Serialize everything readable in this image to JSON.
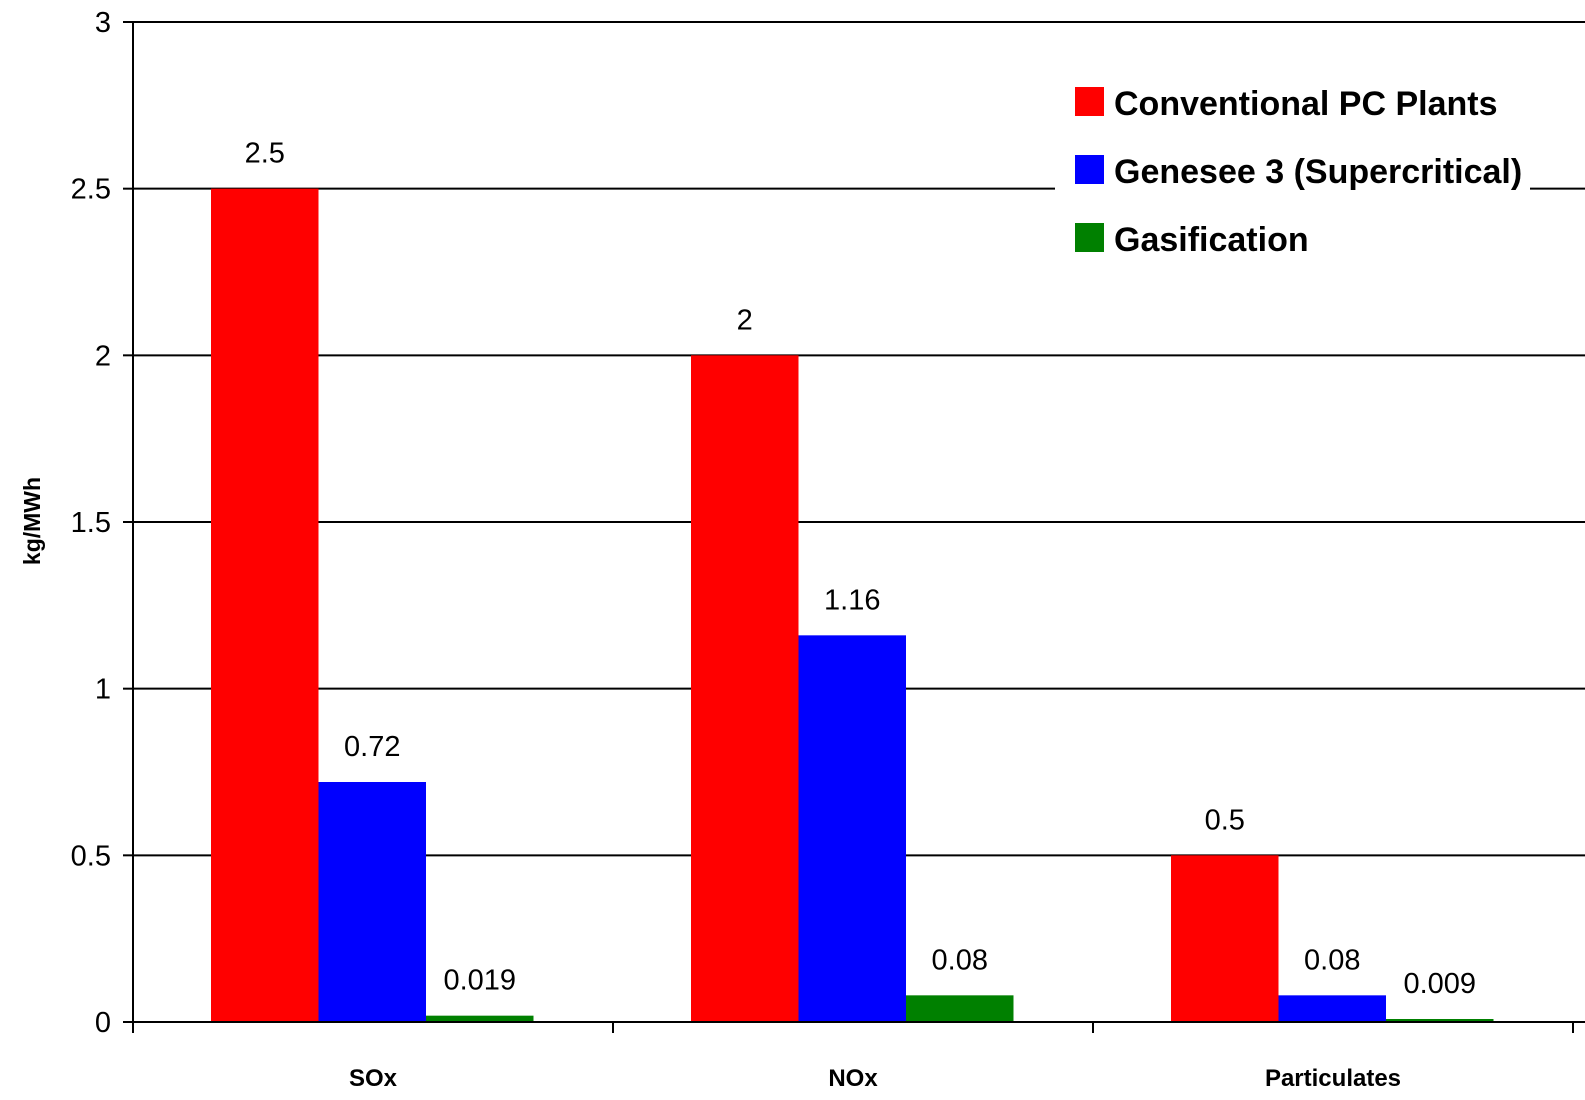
{
  "chart_data": {
    "type": "bar",
    "title": "",
    "xlabel": "",
    "ylabel": "kg/MWh",
    "categories": [
      "SOx",
      "NOx",
      "Particulates"
    ],
    "series": [
      {
        "name": "Conventional PC Plants",
        "color": "#ff0000",
        "values": [
          2.5,
          2,
          0.5
        ],
        "labels": [
          "2.5",
          "2",
          "0.5"
        ]
      },
      {
        "name": "Genesee 3 (Supercritical)",
        "color": "#0000ff",
        "values": [
          0.72,
          1.16,
          0.08
        ],
        "labels": [
          "0.72",
          "1.16",
          "0.08"
        ]
      },
      {
        "name": "Gasification",
        "color": "#008000",
        "values": [
          0.019,
          0.08,
          0.009
        ],
        "labels": [
          "0.019",
          "0.08",
          "0.009"
        ]
      }
    ],
    "ylim": [
      0,
      3
    ],
    "yticks": [
      0,
      0.5,
      1,
      1.5,
      2,
      2.5,
      3
    ],
    "ytick_labels": [
      "0",
      "0.5",
      "1",
      "1.5",
      "2",
      "2.5",
      "3"
    ],
    "grid": true,
    "legend_position": "top-right"
  }
}
